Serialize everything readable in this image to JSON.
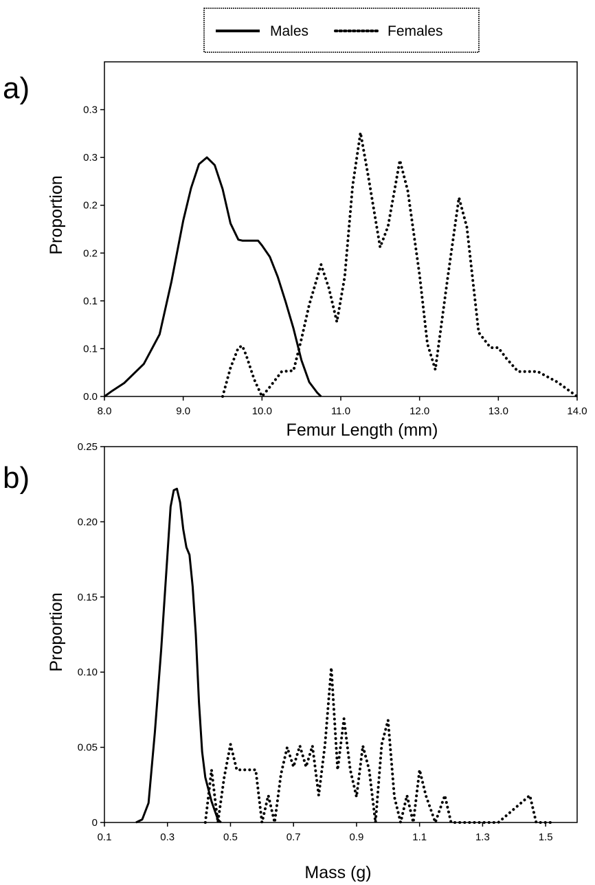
{
  "legend": {
    "placement": "top-center",
    "entries": [
      {
        "label": "Males",
        "style": "solid"
      },
      {
        "label": "Females",
        "style": "dotted"
      }
    ]
  },
  "chart_data": [
    {
      "type": "line",
      "panel_label": "a)",
      "xlabel": "Femur Length (mm)",
      "ylabel": "Proportion",
      "xlim": [
        8.0,
        14.0
      ],
      "ylim": [
        0.0,
        0.35
      ],
      "x_tick_values": [
        8.0,
        9.0,
        10.0,
        11.0,
        12.0,
        13.0,
        14.0
      ],
      "x_tick_labels": [
        "8.0",
        "9.0",
        "10.0",
        "11.0",
        "12.0",
        "13.0",
        "14.0"
      ],
      "y_tick_values": [
        0.0,
        0.05,
        0.1,
        0.15,
        0.2,
        0.25,
        0.3
      ],
      "y_tick_labels": [
        "0.0",
        "0.1",
        "0.1",
        "0.2",
        "0.2",
        "0.3",
        "0.3"
      ],
      "grid": false,
      "series": [
        {
          "name": "Males",
          "style": "solid",
          "x": [
            8.0,
            8.1,
            8.25,
            8.5,
            8.7,
            8.85,
            9.0,
            9.1,
            9.2,
            9.3,
            9.4,
            9.5,
            9.6,
            9.7,
            9.75,
            9.8,
            9.95,
            10.0,
            10.1,
            10.2,
            10.3,
            10.4,
            10.5,
            10.6,
            10.7,
            10.75
          ],
          "y": [
            0.0,
            0.006,
            0.014,
            0.034,
            0.065,
            0.12,
            0.184,
            0.218,
            0.243,
            0.25,
            0.242,
            0.217,
            0.181,
            0.164,
            0.163,
            0.163,
            0.163,
            0.158,
            0.146,
            0.125,
            0.099,
            0.071,
            0.038,
            0.015,
            0.004,
            0.0
          ]
        },
        {
          "name": "Females",
          "style": "dotted",
          "x": [
            9.5,
            9.6,
            9.7,
            9.75,
            9.8,
            9.9,
            10.0,
            10.1,
            10.25,
            10.4,
            10.5,
            10.6,
            10.75,
            10.85,
            10.95,
            11.05,
            11.15,
            11.25,
            11.35,
            11.5,
            11.6,
            11.75,
            11.85,
            12.0,
            12.1,
            12.2,
            12.35,
            12.5,
            12.6,
            12.75,
            12.9,
            13.0,
            13.1,
            13.25,
            13.5,
            13.75,
            14.0
          ],
          "y": [
            0.0,
            0.03,
            0.051,
            0.053,
            0.043,
            0.018,
            0.0,
            0.01,
            0.026,
            0.027,
            0.06,
            0.096,
            0.138,
            0.113,
            0.078,
            0.125,
            0.22,
            0.276,
            0.23,
            0.156,
            0.178,
            0.247,
            0.215,
            0.127,
            0.055,
            0.028,
            0.12,
            0.208,
            0.177,
            0.067,
            0.051,
            0.051,
            0.04,
            0.026,
            0.026,
            0.015,
            0.0
          ]
        }
      ]
    },
    {
      "type": "line",
      "panel_label": "b)",
      "xlabel": "Mass (g)",
      "ylabel": "Proportion",
      "xlim": [
        0.1,
        1.6
      ],
      "ylim": [
        0.0,
        0.25
      ],
      "x_tick_values": [
        0.1,
        0.3,
        0.5,
        0.7,
        0.9,
        1.1,
        1.3,
        1.5
      ],
      "x_tick_labels": [
        "0.1",
        "0.3",
        "0.5",
        "0.7",
        "0.9",
        "1.1",
        "1.3",
        "1.5"
      ],
      "y_tick_values": [
        0.0,
        0.05,
        0.1,
        0.15,
        0.2,
        0.25
      ],
      "y_tick_labels": [
        "0",
        "0.05",
        "0.10",
        "0.15",
        "0.20",
        "0.25"
      ],
      "grid": false,
      "series": [
        {
          "name": "Males",
          "style": "solid",
          "x": [
            0.2,
            0.22,
            0.24,
            0.26,
            0.28,
            0.3,
            0.31,
            0.32,
            0.33,
            0.34,
            0.35,
            0.36,
            0.37,
            0.38,
            0.39,
            0.4,
            0.41,
            0.42,
            0.44,
            0.46,
            0.47
          ],
          "y": [
            0.0,
            0.002,
            0.013,
            0.06,
            0.115,
            0.178,
            0.21,
            0.221,
            0.222,
            0.213,
            0.195,
            0.183,
            0.178,
            0.157,
            0.125,
            0.08,
            0.047,
            0.03,
            0.014,
            0.002,
            0.0
          ]
        },
        {
          "name": "Females",
          "style": "dotted",
          "x": [
            0.42,
            0.44,
            0.46,
            0.48,
            0.5,
            0.52,
            0.55,
            0.58,
            0.6,
            0.62,
            0.64,
            0.66,
            0.68,
            0.7,
            0.72,
            0.74,
            0.76,
            0.78,
            0.8,
            0.82,
            0.84,
            0.86,
            0.88,
            0.9,
            0.92,
            0.94,
            0.96,
            0.98,
            1.0,
            1.02,
            1.04,
            1.06,
            1.08,
            1.1,
            1.12,
            1.15,
            1.18,
            1.2,
            1.22,
            1.24,
            1.26,
            1.28,
            1.35,
            1.45,
            1.47,
            1.49,
            1.52
          ],
          "y": [
            0.0,
            0.035,
            0.0,
            0.03,
            0.052,
            0.035,
            0.035,
            0.035,
            0.0,
            0.018,
            0.0,
            0.032,
            0.05,
            0.037,
            0.051,
            0.037,
            0.051,
            0.018,
            0.052,
            0.103,
            0.035,
            0.069,
            0.035,
            0.017,
            0.051,
            0.035,
            0.0,
            0.052,
            0.068,
            0.017,
            0.0,
            0.018,
            0.0,
            0.035,
            0.018,
            0.0,
            0.018,
            0.0,
            0.0,
            0.0,
            0.0,
            0.0,
            0.0,
            0.018,
            0.0,
            0.0,
            0.0
          ]
        }
      ]
    }
  ]
}
